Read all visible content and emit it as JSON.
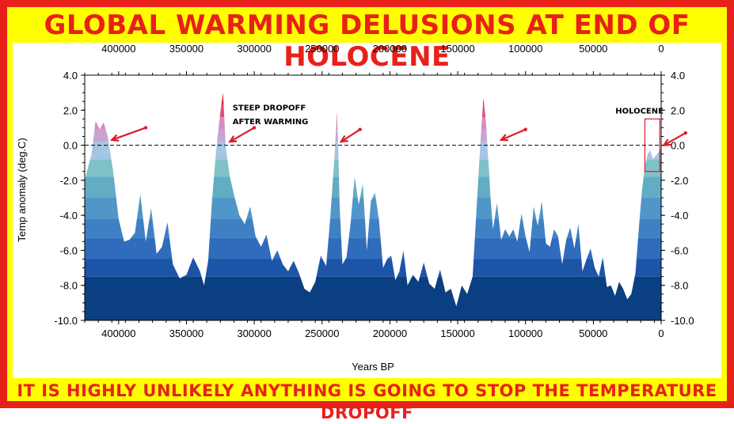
{
  "title": "GLOBAL WARMING DELUSIONS AT END OF HOLOCENE",
  "subtitle": "IT IS HIGHLY UNLIKELY ANYTHING IS GOING TO STOP THE TEMPERATURE DROPOFF",
  "colors": {
    "frame": "#e8201a",
    "background": "#ffff00",
    "warm": "#d81e2a",
    "arrow": "#d81e2a"
  },
  "chart_data": {
    "type": "area",
    "title": "",
    "xlabel": "Years BP",
    "ylabel": "Temp anomaly (deg.C)",
    "xlim": [
      425000,
      0
    ],
    "ylim": [
      -10.0,
      4.0
    ],
    "x_ticks": [
      400000,
      350000,
      300000,
      250000,
      200000,
      150000,
      100000,
      50000,
      0
    ],
    "y_ticks_left": [
      "-10.0",
      "-8.0",
      "-6.0",
      "-4.0",
      "-2.0",
      "0.0",
      "2.0",
      "4.0"
    ],
    "y_ticks_right": [
      "-10.0",
      "-8.0",
      "-6.0",
      "-4.0",
      "-2.0",
      "0.0",
      "2.0",
      "4.0"
    ],
    "reference_line": 0.0,
    "color_bands": [
      "#0a3f82",
      "#1c55a8",
      "#2f6cbc",
      "#3f80c4",
      "#5096c8",
      "#62acc4",
      "#7ec2c8",
      "#a4c6e4",
      "#c8a4d0",
      "#d88ac0",
      "#e24a82",
      "#e01a2a"
    ],
    "series": [
      {
        "x": [
          425000,
          420000,
          417000,
          414000,
          411000,
          408000,
          404000,
          400000,
          396000,
          392000,
          388000,
          384000,
          380000,
          376000,
          372000,
          368000,
          364000,
          360000,
          355000,
          350000,
          345000,
          340000,
          337000,
          334000,
          331000,
          328000,
          325000,
          323000,
          321000,
          318000,
          315000,
          311000,
          307000,
          303000,
          299000,
          295000,
          291000,
          287000,
          283000,
          279000,
          275000,
          271000,
          267000,
          263000,
          259000,
          255000,
          251000,
          247000,
          244000,
          241000,
          239000,
          238000,
          237000,
          235000,
          232000,
          229000,
          226000,
          223000,
          220000,
          217000,
          214000,
          211000,
          208000,
          205000,
          202000,
          199000,
          196000,
          193000,
          190000,
          187000,
          183000,
          179000,
          175000,
          171000,
          167000,
          163000,
          159000,
          155000,
          151000,
          147000,
          143000,
          139000,
          136000,
          133000,
          131000,
          129000,
          128000,
          127000,
          126000,
          124000,
          121000,
          118000,
          115000,
          112000,
          109000,
          106000,
          103000,
          100000,
          97000,
          94000,
          91000,
          88000,
          85000,
          82000,
          79000,
          76000,
          73000,
          70000,
          67000,
          64000,
          61000,
          58000,
          55000,
          52000,
          49000,
          46000,
          43000,
          40000,
          37000,
          34000,
          31000,
          28000,
          25000,
          22000,
          19000,
          16000,
          14000,
          12000,
          10000,
          8000,
          6000,
          4000,
          2000,
          0
        ],
        "y": [
          -2.0,
          -0.5,
          1.4,
          0.9,
          1.3,
          0.5,
          -1.5,
          -4.2,
          -5.5,
          -5.4,
          -5.0,
          -2.8,
          -5.5,
          -3.6,
          -6.2,
          -5.8,
          -4.4,
          -6.8,
          -7.6,
          -7.4,
          -6.4,
          -7.2,
          -8.0,
          -6.6,
          -3.0,
          -0.2,
          1.9,
          3.0,
          -0.1,
          -1.8,
          -2.8,
          -4.0,
          -4.5,
          -3.5,
          -5.2,
          -5.8,
          -5.1,
          -6.6,
          -6.0,
          -6.8,
          -7.2,
          -6.6,
          -7.3,
          -8.2,
          -8.4,
          -7.8,
          -6.3,
          -6.9,
          -4.2,
          -0.8,
          1.9,
          -0.4,
          -3.5,
          -6.8,
          -6.4,
          -4.5,
          -1.8,
          -3.4,
          -2.2,
          -6.0,
          -3.2,
          -2.7,
          -4.3,
          -7.0,
          -6.5,
          -6.3,
          -7.7,
          -7.2,
          -6.0,
          -8.0,
          -7.4,
          -7.8,
          -6.7,
          -7.9,
          -8.2,
          -7.1,
          -8.4,
          -8.2,
          -9.2,
          -8.0,
          -8.5,
          -7.5,
          -3.5,
          0.5,
          2.7,
          1.2,
          -0.2,
          -1.3,
          -2.8,
          -4.8,
          -3.3,
          -5.4,
          -4.8,
          -5.2,
          -4.8,
          -5.5,
          -3.9,
          -5.2,
          -6.1,
          -3.5,
          -4.6,
          -3.2,
          -5.6,
          -5.8,
          -4.8,
          -5.2,
          -6.8,
          -5.4,
          -4.7,
          -5.9,
          -4.5,
          -7.2,
          -6.5,
          -5.9,
          -7.0,
          -7.5,
          -6.4,
          -8.1,
          -8.0,
          -8.6,
          -7.8,
          -8.2,
          -8.8,
          -8.5,
          -7.3,
          -4.3,
          -2.5,
          -1.2,
          -0.5,
          -0.3,
          -0.8,
          -0.6,
          -0.4,
          -0.2
        ]
      }
    ],
    "annotations": [
      {
        "text": "STEEP DROPOFF",
        "at_x": 316000,
        "at_y": 2.0
      },
      {
        "text": "AFTER WARMING",
        "at_x": 316000,
        "at_y": 1.2
      },
      {
        "text": "HOLOCENE",
        "at_x": 16000,
        "at_y": 1.8
      }
    ],
    "arrows": [
      {
        "from": [
          380000,
          1.0
        ],
        "to": [
          405000,
          0.3
        ]
      },
      {
        "from": [
          300000,
          1.0
        ],
        "to": [
          318000,
          0.2
        ]
      },
      {
        "from": [
          222000,
          0.9
        ],
        "to": [
          236000,
          0.2
        ]
      },
      {
        "from": [
          100000,
          0.9
        ],
        "to": [
          118000,
          0.3
        ]
      },
      {
        "from": [
          -18000,
          0.7
        ],
        "to": [
          -2000,
          0.0
        ]
      }
    ],
    "highlight_box": {
      "x_range": [
        12000,
        1000
      ],
      "y_range": [
        -1.5,
        1.5
      ]
    }
  }
}
